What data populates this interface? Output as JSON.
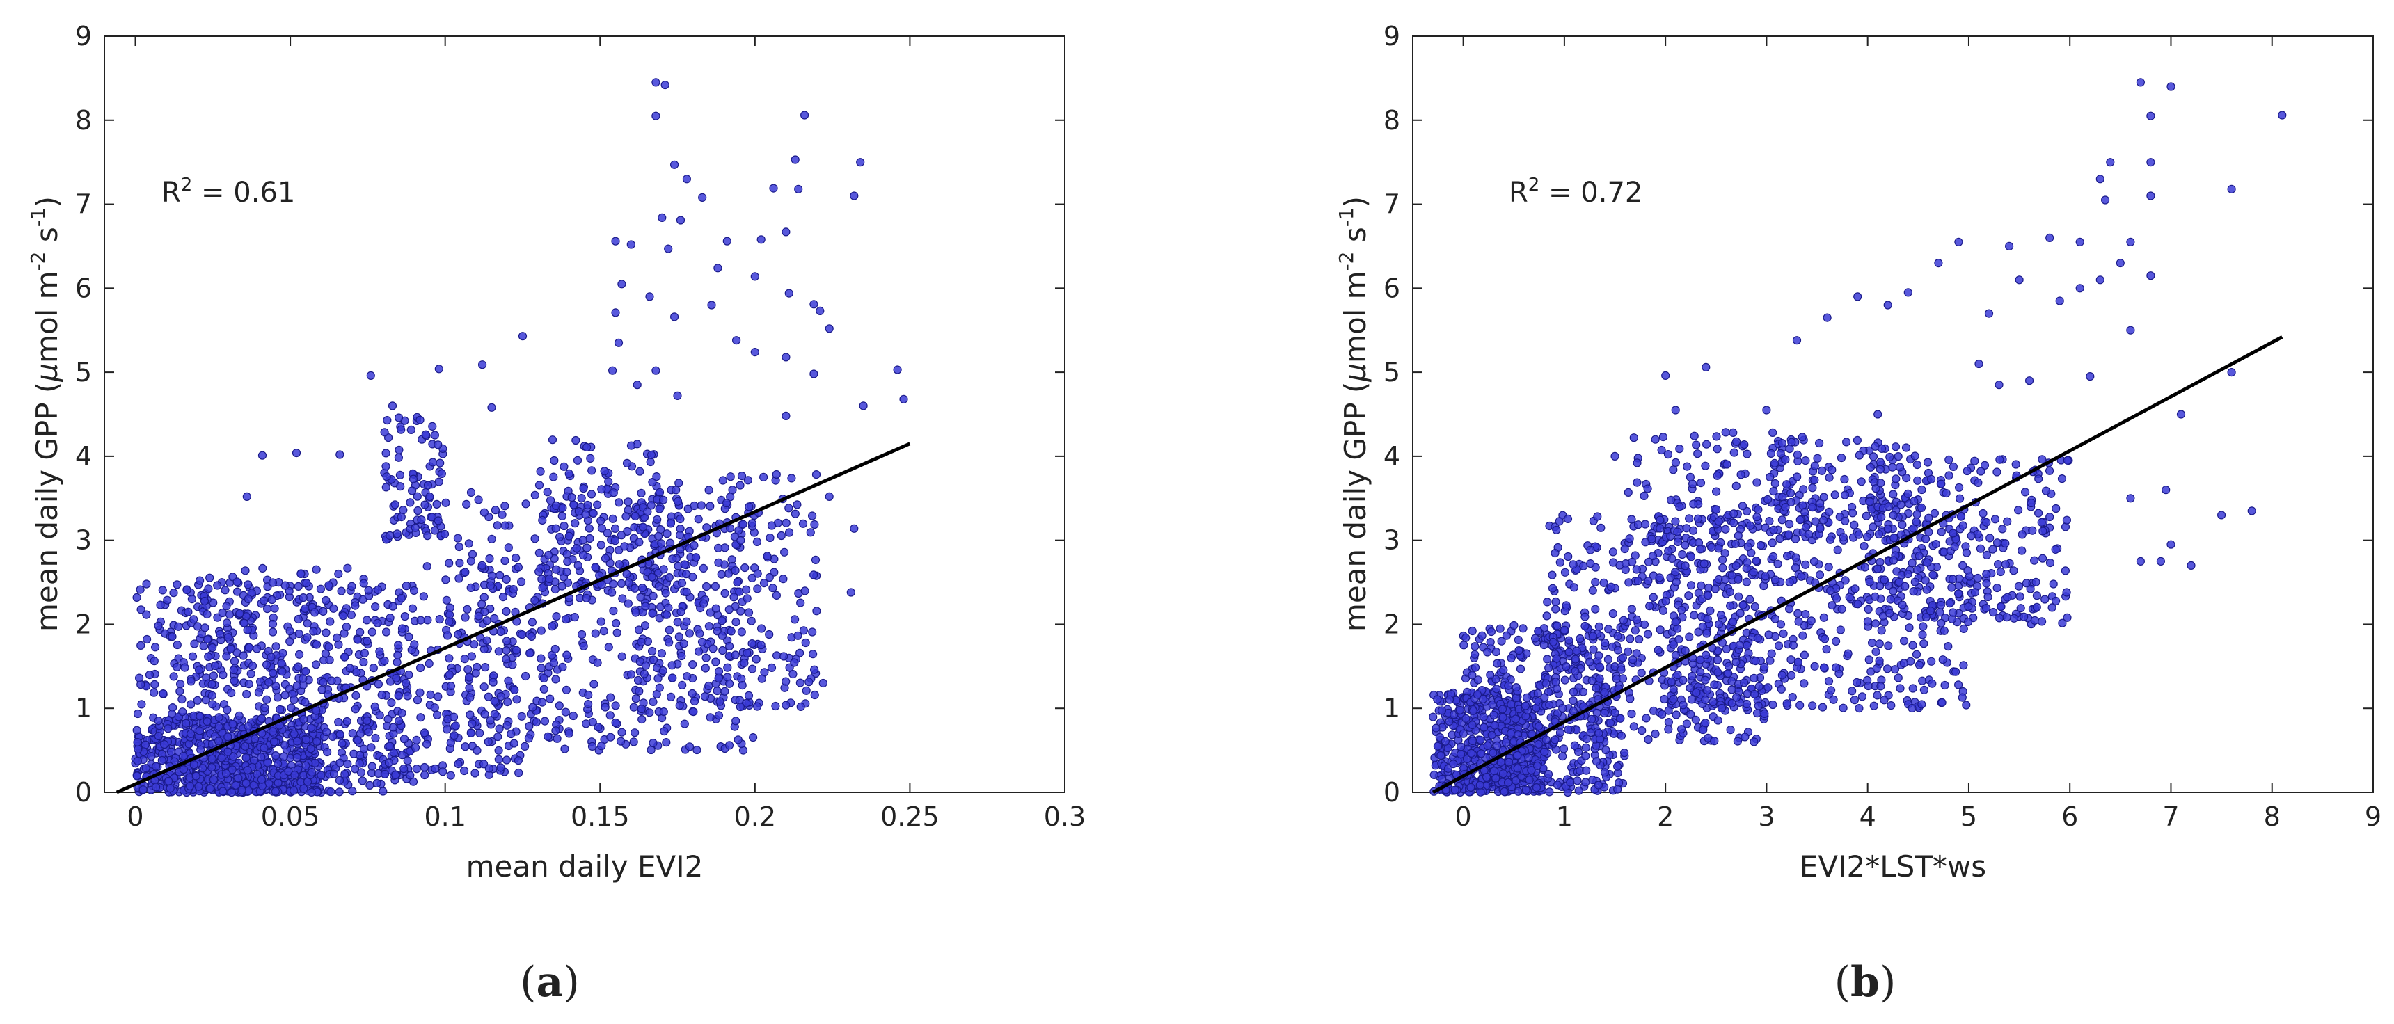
{
  "chart_data": [
    {
      "type": "scatter",
      "panel_label": "a",
      "xlabel": "mean daily EVI2",
      "ylabel_main": "mean daily GPP (",
      "ylabel_mu": "μ",
      "ylabel_mol": "mol m",
      "ylabel_exp1": "-2",
      "ylabel_s": " s",
      "ylabel_exp2": "-1",
      "ylabel_close": ")",
      "r2_label": "R",
      "r2_exp": "2",
      "r2_value": " = 0.61",
      "xlim": [
        -0.01,
        0.3
      ],
      "ylim": [
        0,
        9
      ],
      "xticks": [
        0,
        0.05,
        0.1,
        0.15,
        0.2,
        0.25,
        0.3
      ],
      "xtick_labels": [
        "0",
        "0.05",
        "0.1",
        "0.15",
        "0.2",
        "0.25",
        "0.3"
      ],
      "yticks": [
        0,
        1,
        2,
        3,
        4,
        5,
        6,
        7,
        8,
        9
      ],
      "ytick_labels": [
        "0",
        "1",
        "2",
        "3",
        "4",
        "5",
        "6",
        "7",
        "8",
        "9"
      ],
      "fit_line": {
        "x": [
          -0.006,
          0.25
        ],
        "y": [
          0.0,
          4.15
        ]
      },
      "marker_color": "#3b3bd6",
      "marker_edge": "#1a1a8a",
      "points": [
        [
          0.168,
          8.45
        ],
        [
          0.171,
          8.42
        ],
        [
          0.168,
          8.05
        ],
        [
          0.216,
          8.06
        ],
        [
          0.234,
          7.5
        ],
        [
          0.213,
          7.53
        ],
        [
          0.174,
          7.47
        ],
        [
          0.178,
          7.3
        ],
        [
          0.183,
          7.08
        ],
        [
          0.232,
          7.1
        ],
        [
          0.206,
          7.19
        ],
        [
          0.214,
          7.18
        ],
        [
          0.17,
          6.84
        ],
        [
          0.176,
          6.81
        ],
        [
          0.191,
          6.56
        ],
        [
          0.155,
          6.56
        ],
        [
          0.16,
          6.52
        ],
        [
          0.202,
          6.58
        ],
        [
          0.21,
          6.67
        ],
        [
          0.172,
          6.47
        ],
        [
          0.188,
          6.24
        ],
        [
          0.2,
          6.14
        ],
        [
          0.157,
          6.05
        ],
        [
          0.166,
          5.9
        ],
        [
          0.211,
          5.94
        ],
        [
          0.186,
          5.8
        ],
        [
          0.219,
          5.81
        ],
        [
          0.221,
          5.73
        ],
        [
          0.174,
          5.66
        ],
        [
          0.155,
          5.71
        ],
        [
          0.125,
          5.43
        ],
        [
          0.156,
          5.35
        ],
        [
          0.194,
          5.38
        ],
        [
          0.2,
          5.24
        ],
        [
          0.21,
          5.18
        ],
        [
          0.224,
          5.52
        ],
        [
          0.168,
          5.02
        ],
        [
          0.246,
          5.03
        ],
        [
          0.098,
          5.04
        ],
        [
          0.112,
          5.09
        ],
        [
          0.076,
          4.96
        ],
        [
          0.154,
          5.02
        ],
        [
          0.162,
          4.85
        ],
        [
          0.219,
          4.98
        ],
        [
          0.175,
          4.72
        ],
        [
          0.235,
          4.6
        ],
        [
          0.21,
          4.48
        ],
        [
          0.248,
          4.68
        ],
        [
          0.083,
          4.6
        ],
        [
          0.115,
          4.58
        ],
        [
          0.041,
          4.01
        ],
        [
          0.052,
          4.04
        ],
        [
          0.066,
          4.02
        ],
        [
          0.036,
          3.52
        ],
        [
          0.224,
          3.52
        ],
        [
          0.232,
          3.14
        ],
        [
          0.222,
          1.3
        ],
        [
          0.231,
          2.38
        ]
      ],
      "clusters": [
        {
          "x": [
            0.0,
            0.06
          ],
          "y": [
            0.0,
            0.9
          ],
          "n": 600
        },
        {
          "x": [
            0.0,
            0.09
          ],
          "y": [
            0.0,
            2.5
          ],
          "n": 500
        },
        {
          "x": [
            0.02,
            0.13
          ],
          "y": [
            0.2,
            2.7
          ],
          "n": 400
        },
        {
          "x": [
            0.08,
            0.1
          ],
          "y": [
            3.0,
            4.5
          ],
          "n": 90
        },
        {
          "x": [
            0.1,
            0.2
          ],
          "y": [
            0.5,
            3.6
          ],
          "n": 450
        },
        {
          "x": [
            0.13,
            0.17
          ],
          "y": [
            2.3,
            4.2
          ],
          "n": 150
        },
        {
          "x": [
            0.16,
            0.22
          ],
          "y": [
            1.0,
            3.8
          ],
          "n": 260
        }
      ]
    },
    {
      "type": "scatter",
      "panel_label": "b",
      "xlabel": "EVI2*LST*ws",
      "ylabel_main": "mean daily GPP (",
      "ylabel_mu": "μ",
      "ylabel_mol": "mol m",
      "ylabel_exp1": "-2",
      "ylabel_s": " s",
      "ylabel_exp2": "-1",
      "ylabel_close": ")",
      "r2_label": "R",
      "r2_exp": "2",
      "r2_value": " = 0.72",
      "xlim": [
        -0.5,
        9
      ],
      "ylim": [
        0,
        9
      ],
      "xticks": [
        0,
        1,
        2,
        3,
        4,
        5,
        6,
        7,
        8,
        9
      ],
      "xtick_labels": [
        "0",
        "1",
        "2",
        "3",
        "4",
        "5",
        "6",
        "7",
        "8",
        "9"
      ],
      "yticks": [
        0,
        1,
        2,
        3,
        4,
        5,
        6,
        7,
        8,
        9
      ],
      "ytick_labels": [
        "0",
        "1",
        "2",
        "3",
        "4",
        "5",
        "6",
        "7",
        "8",
        "9"
      ],
      "fit_line": {
        "x": [
          -0.3,
          8.1
        ],
        "y": [
          0.0,
          5.42
        ]
      },
      "marker_color": "#3b3bd6",
      "marker_edge": "#1a1a8a",
      "points": [
        [
          6.7,
          8.45
        ],
        [
          7.0,
          8.4
        ],
        [
          6.8,
          8.05
        ],
        [
          8.1,
          8.06
        ],
        [
          6.4,
          7.5
        ],
        [
          6.8,
          7.5
        ],
        [
          7.6,
          7.18
        ],
        [
          6.3,
          7.3
        ],
        [
          6.35,
          7.05
        ],
        [
          6.8,
          7.1
        ],
        [
          6.6,
          6.55
        ],
        [
          6.5,
          6.3
        ],
        [
          6.3,
          6.1
        ],
        [
          6.8,
          6.15
        ],
        [
          5.8,
          6.6
        ],
        [
          6.1,
          6.55
        ],
        [
          5.4,
          6.5
        ],
        [
          4.9,
          6.55
        ],
        [
          5.5,
          6.1
        ],
        [
          4.7,
          6.3
        ],
        [
          6.1,
          6.0
        ],
        [
          5.9,
          5.85
        ],
        [
          5.2,
          5.7
        ],
        [
          3.9,
          5.9
        ],
        [
          4.2,
          5.8
        ],
        [
          4.4,
          5.95
        ],
        [
          3.3,
          5.38
        ],
        [
          5.1,
          5.1
        ],
        [
          5.3,
          4.85
        ],
        [
          5.6,
          4.9
        ],
        [
          6.2,
          4.95
        ],
        [
          6.6,
          5.5
        ],
        [
          7.1,
          4.5
        ],
        [
          2.4,
          5.06
        ],
        [
          2.0,
          4.96
        ],
        [
          2.1,
          4.55
        ],
        [
          1.9,
          4.2
        ],
        [
          7.6,
          5.0
        ],
        [
          7.5,
          3.3
        ],
        [
          7.2,
          2.7
        ],
        [
          7.0,
          2.95
        ],
        [
          7.8,
          3.35
        ],
        [
          6.9,
          2.75
        ],
        [
          6.6,
          3.5
        ],
        [
          6.95,
          3.6
        ],
        [
          6.7,
          2.75
        ],
        [
          3.6,
          5.65
        ],
        [
          4.1,
          4.5
        ],
        [
          3.0,
          4.55
        ],
        [
          1.5,
          4.0
        ]
      ],
      "clusters": [
        {
          "x": [
            -0.3,
            0.8
          ],
          "y": [
            0.0,
            1.2
          ],
          "n": 500
        },
        {
          "x": [
            0.0,
            1.6
          ],
          "y": [
            0.0,
            2.0
          ],
          "n": 380
        },
        {
          "x": [
            0.8,
            3.0
          ],
          "y": [
            0.6,
            3.3
          ],
          "n": 420
        },
        {
          "x": [
            1.6,
            3.4
          ],
          "y": [
            2.5,
            4.3
          ],
          "n": 150
        },
        {
          "x": [
            2.0,
            5.0
          ],
          "y": [
            1.0,
            3.5
          ],
          "n": 450
        },
        {
          "x": [
            4.0,
            6.0
          ],
          "y": [
            2.0,
            4.0
          ],
          "n": 260
        },
        {
          "x": [
            3.0,
            4.5
          ],
          "y": [
            3.0,
            4.2
          ],
          "n": 120
        }
      ]
    }
  ]
}
